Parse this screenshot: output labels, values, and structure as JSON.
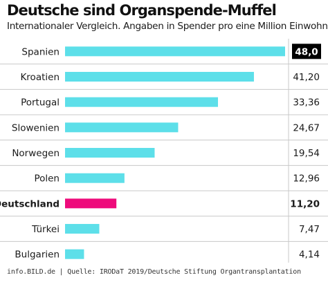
{
  "title": "Deutsche sind Organspende-Muffel",
  "subtitle": "Internationaler Vergleich. Angaben in Spender pro eine Million Einwohner",
  "footer": "info.BILD.de | Quelle: IRODaT 2019/Deutsche Stiftung Organtransplantation",
  "colors": {
    "bar": "#5ddfe9",
    "highlight": "#ee0b7b",
    "top_value_bg": "#000000",
    "divider": "#c8c8c8"
  },
  "chart_data": {
    "type": "bar",
    "orientation": "horizontal",
    "title": "Deutsche sind Organspende-Muffel",
    "subtitle": "Internationaler Vergleich. Angaben in Spender pro eine Million Einwohner",
    "categories": [
      "Spanien",
      "Kroatien",
      "Portugal",
      "Slowenien",
      "Norwegen",
      "Polen",
      "Deutschland",
      "Türkei",
      "Bulgarien"
    ],
    "values": [
      48.0,
      41.2,
      33.36,
      24.67,
      19.54,
      12.96,
      11.2,
      7.47,
      4.14
    ],
    "value_labels": [
      "48,0",
      "41,20",
      "33,36",
      "24,67",
      "19,54",
      "12,96",
      "11,20",
      "7,47",
      "4,14"
    ],
    "highlight_category": "Deutschland",
    "top_value_boxed": "Spanien",
    "xlim": [
      0,
      48.0
    ],
    "grid": false,
    "axes_visible": false,
    "legend": "none"
  }
}
